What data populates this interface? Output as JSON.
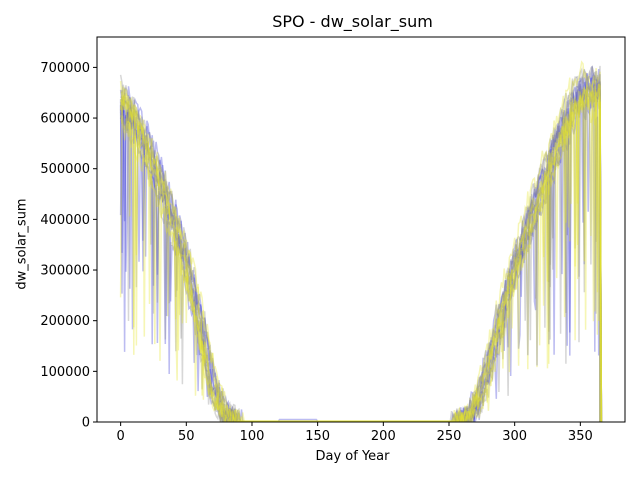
{
  "chart_data": {
    "type": "line",
    "title": "SPO - dw_solar_sum",
    "xlabel": "Day of Year",
    "ylabel": "dw_solar_sum",
    "xlim": [
      -18,
      384
    ],
    "ylim": [
      0,
      760000
    ],
    "xticks": [
      0,
      50,
      100,
      150,
      200,
      250,
      300,
      350
    ],
    "yticks": [
      0,
      100000,
      200000,
      300000,
      400000,
      500000,
      600000,
      700000
    ],
    "xtick_labels": [
      "0",
      "50",
      "100",
      "150",
      "200",
      "250",
      "300",
      "350"
    ],
    "ytick_labels": [
      "0",
      "100000",
      "200000",
      "300000",
      "400000",
      "500000",
      "600000",
      "700000"
    ],
    "grid": false,
    "legend": "none",
    "series_colors": {
      "blue": "#3f3fd8",
      "gray": "#8c8c8c",
      "yellow": "#e6e62a"
    },
    "envelope": {
      "description_points_doy": [
        0,
        10,
        20,
        30,
        40,
        50,
        60,
        70,
        80,
        90,
        100,
        150,
        200,
        255,
        265,
        275,
        285,
        295,
        305,
        315,
        325,
        335,
        345,
        355,
        365
      ],
      "typical_values": [
        630000,
        590000,
        535000,
        470000,
        395000,
        310000,
        200000,
        70000,
        12000,
        0,
        0,
        0,
        0,
        0,
        8000,
        60000,
        160000,
        260000,
        340000,
        420000,
        490000,
        560000,
        620000,
        650000,
        640000
      ]
    },
    "series": [
      {
        "color_group": "blue",
        "count": 7
      },
      {
        "color_group": "gray",
        "count": 6
      },
      {
        "color_group": "yellow",
        "count": 7
      }
    ]
  }
}
